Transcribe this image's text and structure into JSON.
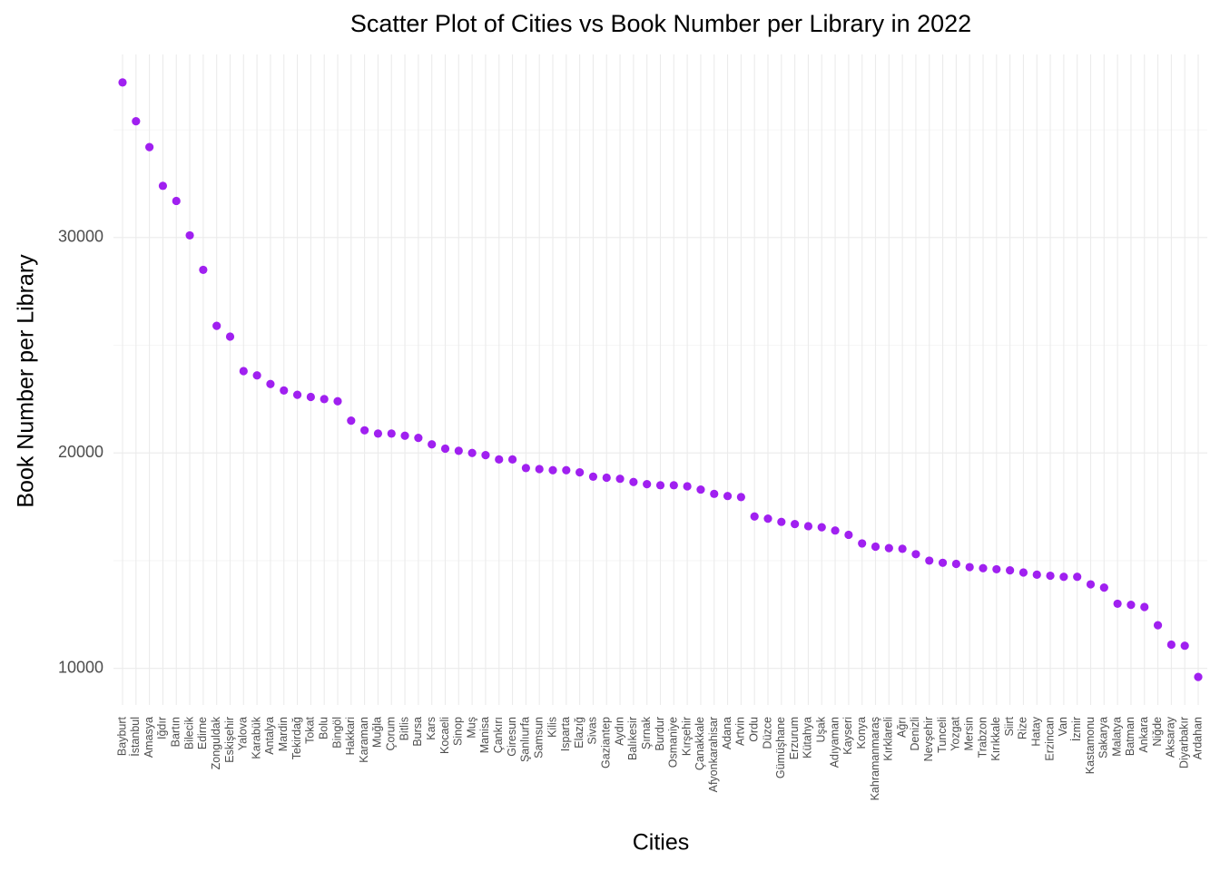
{
  "chart_data": {
    "type": "scatter",
    "title": "Scatter Plot of Cities vs Book Number per Library in 2022",
    "x_label": "Cities",
    "y_label": "Book Number per Library",
    "categories": [
      "Bayburt",
      "İstanbul",
      "Amasya",
      "Iğdır",
      "Bartın",
      "Bilecik",
      "Edirne",
      "Zonguldak",
      "Eskişehir",
      "Yalova",
      "Karabük",
      "Antalya",
      "Mardin",
      "Tekirdağ",
      "Tokat",
      "Bolu",
      "Bingöl",
      "Hakkari",
      "Karaman",
      "Muğla",
      "Çorum",
      "Bitlis",
      "Bursa",
      "Kars",
      "Kocaeli",
      "Sinop",
      "Muş",
      "Manisa",
      "Çankırı",
      "Giresun",
      "Şanlıurfa",
      "Samsun",
      "Kilis",
      "Isparta",
      "Elazığ",
      "Sivas",
      "Gaziantep",
      "Aydın",
      "Balıkesir",
      "Şırnak",
      "Burdur",
      "Osmaniye",
      "Kırşehir",
      "Çanakkale",
      "Afyonkarahisar",
      "Adana",
      "Artvin",
      "Ordu",
      "Düzce",
      "Gümüşhane",
      "Erzurum",
      "Kütahya",
      "Uşak",
      "Adıyaman",
      "Kayseri",
      "Konya",
      "Kahramanmaraş",
      "Kırklareli",
      "Ağrı",
      "Denizli",
      "Nevşehir",
      "Tunceli",
      "Yozgat",
      "Mersin",
      "Trabzon",
      "Kırıkkale",
      "Siirt",
      "Rize",
      "Hatay",
      "Erzincan",
      "Van",
      "İzmir",
      "Kastamonu",
      "Sakarya",
      "Malatya",
      "Batman",
      "Ankara",
      "Niğde",
      "Aksaray",
      "Diyarbakır",
      "Ardahan"
    ],
    "values": [
      37200,
      35400,
      34200,
      32400,
      31700,
      30100,
      28500,
      25900,
      25400,
      23800,
      23600,
      23200,
      22900,
      22700,
      22600,
      22500,
      22400,
      21500,
      21050,
      20900,
      20900,
      20800,
      20700,
      20400,
      20200,
      20100,
      20000,
      19900,
      19700,
      19700,
      19300,
      19250,
      19200,
      19200,
      19100,
      18900,
      18850,
      18800,
      18650,
      18550,
      18500,
      18500,
      18450,
      18300,
      18100,
      18000,
      17950,
      17050,
      16950,
      16800,
      16700,
      16600,
      16550,
      16400,
      16200,
      15800,
      15650,
      15580,
      15550,
      15300,
      15000,
      14900,
      14850,
      14700,
      14650,
      14600,
      14550,
      14450,
      14350,
      14300,
      14250,
      14250,
      13900,
      13750,
      13000,
      12950,
      12850,
      12000,
      11100,
      11050,
      9600
    ],
    "color": "#a020f0",
    "ylim": [
      8300,
      38500
    ],
    "yticks": [
      10000,
      20000,
      30000
    ],
    "minor_yticks": [
      15000,
      25000,
      35000
    ],
    "grid": true
  }
}
